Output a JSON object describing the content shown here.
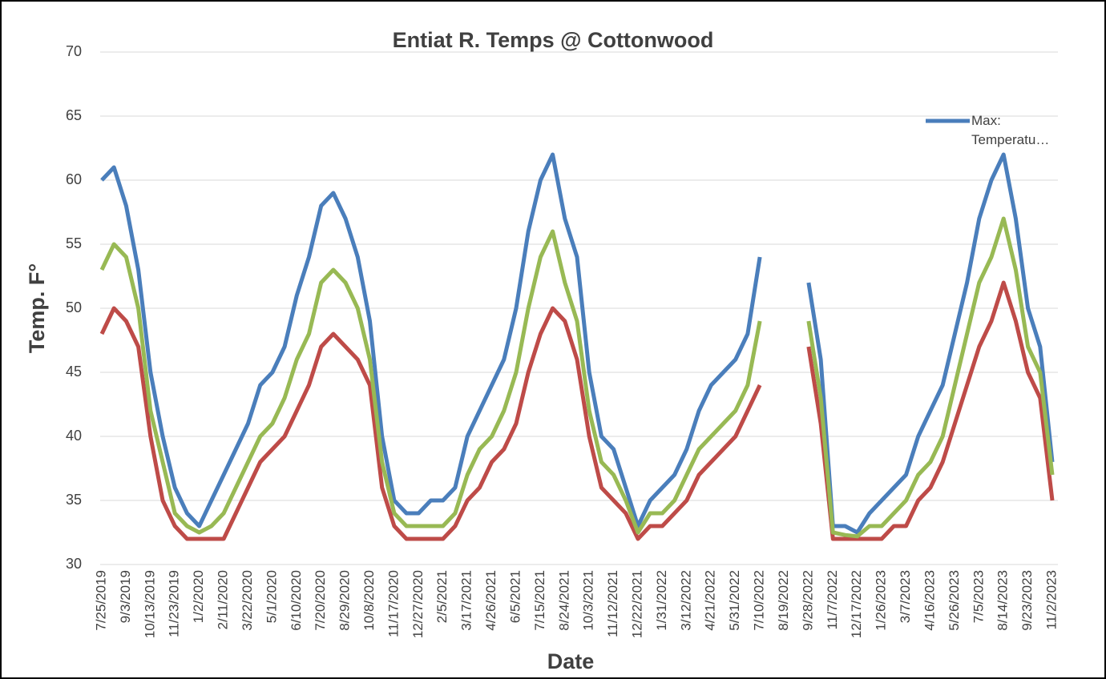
{
  "chart_data": {
    "type": "line",
    "title": "Entiat R. Temps @ Cottonwood",
    "xlabel": "Date",
    "ylabel": "Temp. F°",
    "categories": [
      "7/25/2019",
      null,
      "9/3/2019",
      null,
      "10/13/2019",
      null,
      "11/23/2019",
      null,
      "1/2/2020",
      null,
      "2/11/2020",
      null,
      "3/22/2020",
      null,
      "5/1/2020",
      null,
      "6/10/2020",
      null,
      "7/20/2020",
      null,
      "8/29/2020",
      null,
      "10/8/2020",
      null,
      "11/17/2020",
      null,
      "12/27/2020",
      null,
      "2/5/2021",
      null,
      "3/17/2021",
      null,
      "4/26/2021",
      null,
      "6/5/2021",
      null,
      "7/15/2021",
      null,
      "8/24/2021",
      null,
      "10/3/2021",
      null,
      "11/12/2021",
      null,
      "12/22/2021",
      null,
      "1/31/2022",
      null,
      "3/12/2022",
      null,
      "4/21/2022",
      null,
      "5/31/2022",
      null,
      "7/10/2022",
      null,
      "8/19/2022",
      null,
      "9/28/2022",
      null,
      "11/7/2022",
      null,
      "12/17/2022",
      null,
      "1/26/2023",
      null,
      "3/7/2023",
      null,
      "4/16/2023",
      null,
      "5/26/2023",
      null,
      "7/5/2023",
      null,
      "8/14/2023",
      null,
      "9/23/2023",
      null,
      "11/2/2023"
    ],
    "series": [
      {
        "name": "Max: Temperatu…",
        "color": "#4a7ebb",
        "values": [
          60,
          61,
          58,
          53,
          45,
          40,
          36,
          34,
          33,
          35,
          37,
          39,
          41,
          44,
          45,
          47,
          51,
          54,
          58,
          59,
          57,
          54,
          49,
          40,
          35,
          34,
          34,
          35,
          35,
          36,
          40,
          42,
          44,
          46,
          50,
          56,
          60,
          62,
          57,
          54,
          45,
          40,
          39,
          36,
          33,
          35,
          36,
          37,
          39,
          42,
          44,
          45,
          46,
          48,
          54,
          null,
          null,
          null,
          52,
          46,
          33,
          33,
          32.5,
          34,
          35,
          36,
          37,
          40,
          42,
          44,
          48,
          52,
          57,
          60,
          62,
          57,
          50,
          47,
          38
        ]
      },
      {
        "color": "#be4b48",
        "values": [
          48,
          50,
          49,
          47,
          40,
          35,
          33,
          32,
          32,
          32,
          32,
          34,
          36,
          38,
          39,
          40,
          42,
          44,
          47,
          48,
          47,
          46,
          44,
          36,
          33,
          32,
          32,
          32,
          32,
          33,
          35,
          36,
          38,
          39,
          41,
          45,
          48,
          50,
          49,
          46,
          40,
          36,
          35,
          34,
          32,
          33,
          33,
          34,
          35,
          37,
          38,
          39,
          40,
          42,
          44,
          null,
          null,
          null,
          47,
          41,
          32,
          32,
          32,
          32,
          32,
          33,
          33,
          35,
          36,
          38,
          41,
          44,
          47,
          49,
          52,
          49,
          45,
          43,
          35
        ]
      },
      {
        "color": "#98b954",
        "values": [
          53,
          55,
          54,
          50,
          42,
          38,
          34,
          33,
          32.5,
          33,
          34,
          36,
          38,
          40,
          41,
          43,
          46,
          48,
          52,
          53,
          52,
          50,
          46,
          38,
          34,
          33,
          33,
          33,
          33,
          34,
          37,
          39,
          40,
          42,
          45,
          50,
          54,
          56,
          52,
          49,
          42,
          38,
          37,
          35,
          32.5,
          34,
          34,
          35,
          37,
          39,
          40,
          41,
          42,
          44,
          49,
          null,
          null,
          null,
          49,
          43,
          32.5,
          32.3,
          32.2,
          33,
          33,
          34,
          35,
          37,
          38,
          40,
          44,
          48,
          52,
          54,
          57,
          53,
          47,
          45,
          37
        ]
      }
    ],
    "ylim": [
      30,
      70
    ],
    "yticks": [
      30,
      35,
      40,
      45,
      50,
      55,
      60,
      65,
      70
    ],
    "grid": true,
    "legend": "top-right"
  }
}
